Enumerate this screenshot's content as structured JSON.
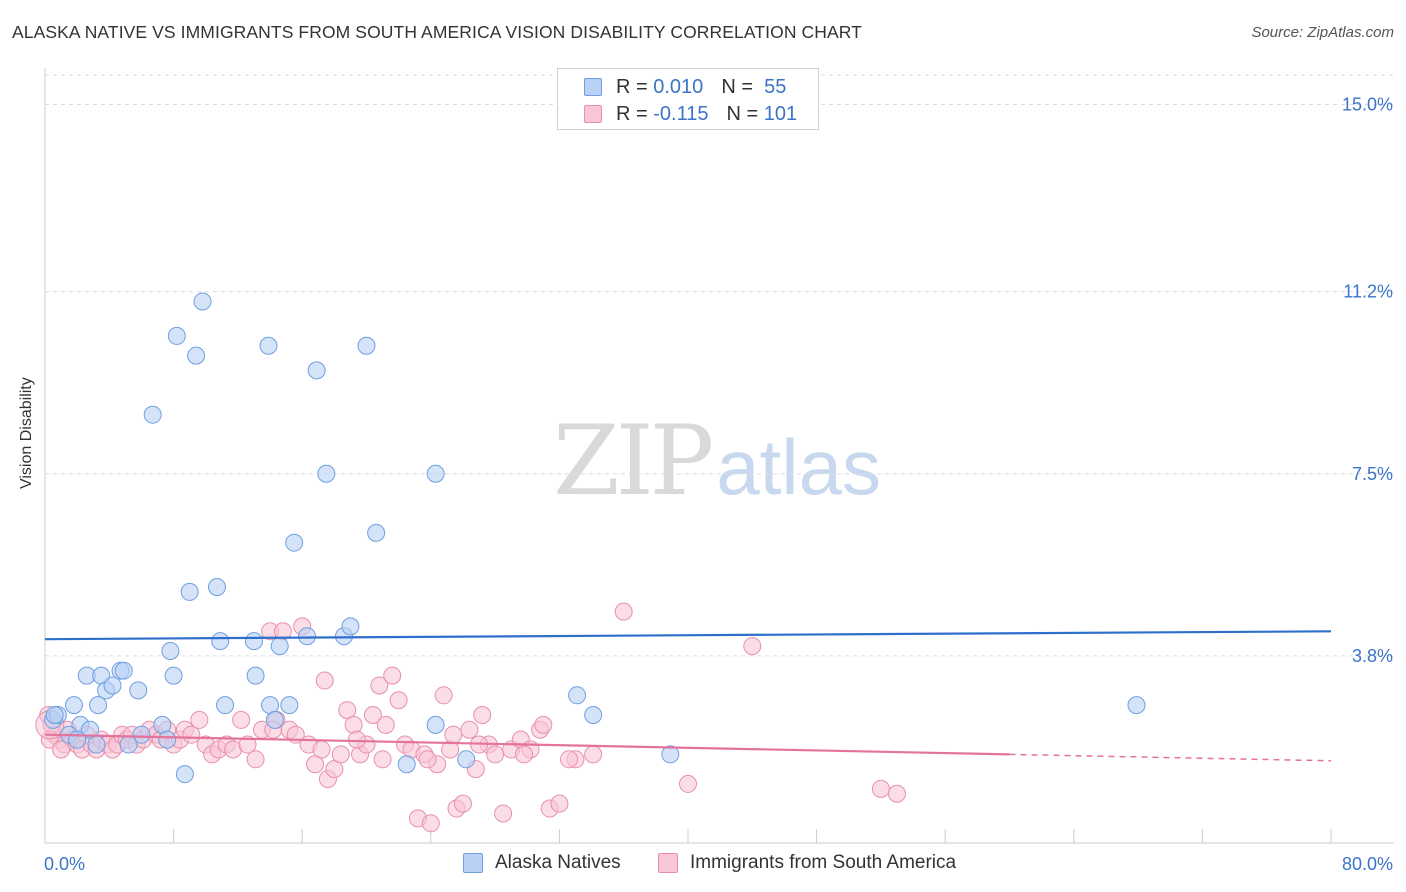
{
  "title": "ALASKA NATIVE VS IMMIGRANTS FROM SOUTH AMERICA VISION DISABILITY CORRELATION CHART",
  "source": "Source: ZipAtlas.com",
  "watermark": {
    "zip": "ZIP",
    "atlas": "atlas"
  },
  "legend": {
    "series": [
      {
        "r_label": "R =",
        "r_value": "0.010",
        "n_label": "N =",
        "n_value": "55",
        "fill": "#b9d1f5",
        "stroke": "#6f9fe0"
      },
      {
        "r_label": "R =",
        "r_value": "-0.115",
        "n_label": "N =",
        "n_value": "101",
        "fill": "#f8c6d6",
        "stroke": "#e98fae"
      }
    ]
  },
  "bottom_legend": [
    "Alaska Natives",
    "Immigrants from South America"
  ],
  "chart_data": {
    "type": "scatter",
    "title": "ALASKA NATIVE VS IMMIGRANTS FROM SOUTH AMERICA VISION DISABILITY CORRELATION CHART",
    "xlabel": "",
    "ylabel": "Vision Disability",
    "xlim": [
      0,
      80
    ],
    "ylim": [
      0,
      15.6
    ],
    "x_tick_labels": [
      "0.0%",
      "80.0%"
    ],
    "y_ticks": [
      3.8,
      7.5,
      11.2,
      15.0
    ],
    "y_tick_labels": [
      "3.8%",
      "7.5%",
      "11.2%",
      "15.0%"
    ],
    "grid": true,
    "legend_position": "top-center",
    "colors": {
      "blue_fill": "#b9d1f5",
      "blue_stroke": "#6f9fe0",
      "blue_line": "#2f6fcc",
      "pink_fill": "#f8c6d6",
      "pink_stroke": "#e98fae",
      "pink_line": "#e3729c",
      "tick_label": "#3b74c8"
    },
    "series": [
      {
        "name": "Alaska Natives",
        "trend": {
          "x": [
            0,
            80
          ],
          "y": [
            4.14,
            4.3
          ]
        },
        "points": [
          [
            0.5,
            2.5
          ],
          [
            0.8,
            2.6
          ],
          [
            1.8,
            2.8
          ],
          [
            2.2,
            2.4
          ],
          [
            2.8,
            2.3
          ],
          [
            1.5,
            2.2
          ],
          [
            3.3,
            2.8
          ],
          [
            2.6,
            3.4
          ],
          [
            3.5,
            3.4
          ],
          [
            3.8,
            3.1
          ],
          [
            4.2,
            3.2
          ],
          [
            4.7,
            3.5
          ],
          [
            4.9,
            3.5
          ],
          [
            5.8,
            3.1
          ],
          [
            6.0,
            2.2
          ],
          [
            5.2,
            2.0
          ],
          [
            7.3,
            2.4
          ],
          [
            7.6,
            2.1
          ],
          [
            8.0,
            3.4
          ],
          [
            7.8,
            3.9
          ],
          [
            8.7,
            1.4
          ],
          [
            9.0,
            5.1
          ],
          [
            10.7,
            5.2
          ],
          [
            10.9,
            4.1
          ],
          [
            11.2,
            2.8
          ],
          [
            13.0,
            4.1
          ],
          [
            13.1,
            3.4
          ],
          [
            14.0,
            2.8
          ],
          [
            14.3,
            2.5
          ],
          [
            14.6,
            4.0
          ],
          [
            15.2,
            2.8
          ],
          [
            15.5,
            6.1
          ],
          [
            16.3,
            4.2
          ],
          [
            18.6,
            4.2
          ],
          [
            19.0,
            4.4
          ],
          [
            22.5,
            1.6
          ],
          [
            24.3,
            2.4
          ],
          [
            26.2,
            1.7
          ],
          [
            33.1,
            3.0
          ],
          [
            34.1,
            2.6
          ],
          [
            38.9,
            1.8
          ],
          [
            67.9,
            2.8
          ],
          [
            6.7,
            8.7
          ],
          [
            8.2,
            10.3
          ],
          [
            9.4,
            9.9
          ],
          [
            9.8,
            11.0
          ],
          [
            13.9,
            10.1
          ],
          [
            16.9,
            9.6
          ],
          [
            17.5,
            7.5
          ],
          [
            20.0,
            10.1
          ],
          [
            20.6,
            6.3
          ],
          [
            24.3,
            7.5
          ],
          [
            0.6,
            2.6
          ],
          [
            2.0,
            2.1
          ],
          [
            3.2,
            2.0
          ]
        ]
      },
      {
        "name": "Immigrants from South America",
        "trend": {
          "x": [
            0,
            60
          ],
          "y": [
            2.2,
            1.8
          ]
        },
        "trend_dashed": {
          "x": [
            60,
            80
          ],
          "y": [
            1.8,
            1.67
          ]
        },
        "points": [
          [
            0.2,
            2.6
          ],
          [
            0.4,
            2.4
          ],
          [
            0.6,
            2.2
          ],
          [
            0.9,
            2.1
          ],
          [
            1.2,
            2.0
          ],
          [
            1.4,
            2.3
          ],
          [
            1.7,
            2.1
          ],
          [
            2.0,
            2.0
          ],
          [
            2.3,
            1.9
          ],
          [
            2.6,
            2.2
          ],
          [
            2.9,
            2.0
          ],
          [
            3.2,
            1.9
          ],
          [
            3.5,
            2.1
          ],
          [
            3.9,
            2.0
          ],
          [
            4.2,
            1.9
          ],
          [
            4.5,
            2.0
          ],
          [
            4.8,
            2.2
          ],
          [
            5.1,
            2.1
          ],
          [
            5.4,
            2.2
          ],
          [
            5.7,
            2.0
          ],
          [
            6.1,
            2.1
          ],
          [
            6.5,
            2.3
          ],
          [
            6.9,
            2.2
          ],
          [
            7.2,
            2.1
          ],
          [
            7.6,
            2.3
          ],
          [
            8.0,
            2.0
          ],
          [
            8.4,
            2.1
          ],
          [
            8.7,
            2.3
          ],
          [
            9.1,
            2.2
          ],
          [
            9.6,
            2.5
          ],
          [
            10.0,
            2.0
          ],
          [
            10.4,
            1.8
          ],
          [
            10.8,
            1.9
          ],
          [
            11.3,
            2.0
          ],
          [
            11.7,
            1.9
          ],
          [
            12.2,
            2.5
          ],
          [
            12.6,
            2.0
          ],
          [
            13.1,
            1.7
          ],
          [
            13.5,
            2.3
          ],
          [
            14.0,
            4.3
          ],
          [
            14.4,
            2.5
          ],
          [
            14.8,
            4.3
          ],
          [
            15.2,
            2.3
          ],
          [
            15.6,
            2.2
          ],
          [
            16.0,
            4.4
          ],
          [
            16.4,
            2.0
          ],
          [
            16.8,
            1.6
          ],
          [
            17.2,
            1.9
          ],
          [
            17.6,
            1.3
          ],
          [
            18.0,
            1.5
          ],
          [
            18.4,
            1.8
          ],
          [
            18.8,
            2.7
          ],
          [
            19.2,
            2.4
          ],
          [
            19.6,
            1.8
          ],
          [
            20.0,
            2.0
          ],
          [
            20.4,
            2.6
          ],
          [
            20.8,
            3.2
          ],
          [
            21.2,
            2.4
          ],
          [
            21.6,
            3.4
          ],
          [
            22.0,
            2.9
          ],
          [
            22.4,
            2.0
          ],
          [
            22.8,
            1.9
          ],
          [
            23.2,
            0.5
          ],
          [
            23.6,
            1.8
          ],
          [
            24.0,
            0.4
          ],
          [
            24.4,
            1.6
          ],
          [
            24.8,
            3.0
          ],
          [
            25.2,
            1.9
          ],
          [
            25.6,
            0.7
          ],
          [
            26.0,
            0.8
          ],
          [
            26.4,
            2.3
          ],
          [
            26.8,
            1.5
          ],
          [
            27.2,
            2.6
          ],
          [
            27.6,
            2.0
          ],
          [
            28.0,
            1.8
          ],
          [
            28.5,
            0.6
          ],
          [
            29.0,
            1.9
          ],
          [
            29.6,
            2.1
          ],
          [
            30.2,
            1.9
          ],
          [
            30.8,
            2.3
          ],
          [
            31.4,
            0.7
          ],
          [
            32.0,
            0.8
          ],
          [
            33.0,
            1.7
          ],
          [
            34.1,
            1.8
          ],
          [
            36.0,
            4.7
          ],
          [
            40.0,
            1.2
          ],
          [
            44.0,
            4.0
          ],
          [
            52.0,
            1.1
          ],
          [
            53.0,
            1.0
          ],
          [
            14.2,
            2.3
          ],
          [
            17.4,
            3.3
          ],
          [
            19.4,
            2.1
          ],
          [
            21.0,
            1.7
          ],
          [
            23.8,
            1.7
          ],
          [
            25.4,
            2.2
          ],
          [
            27.0,
            2.0
          ],
          [
            29.8,
            1.8
          ],
          [
            31.0,
            2.4
          ],
          [
            32.6,
            1.7
          ],
          [
            0.3,
            2.1
          ],
          [
            1.0,
            1.9
          ]
        ]
      }
    ]
  }
}
